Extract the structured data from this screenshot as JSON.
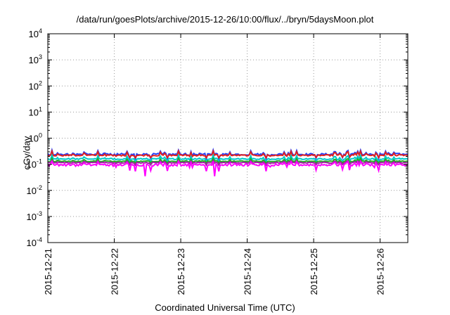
{
  "chart_data": {
    "type": "line",
    "title": "/data/run/goesPlots/archive/2015-12-26/10:00/flux/../bryn/5daysMoon.plot",
    "xlabel": "Coordinated Universal Time (UTC)",
    "ylabel": "cGy/day",
    "yscale": "log",
    "ylim": [
      0.0001,
      10000
    ],
    "y_ticks": [
      {
        "base": "10",
        "exp": "-4"
      },
      {
        "base": "10",
        "exp": "-3"
      },
      {
        "base": "10",
        "exp": "-2"
      },
      {
        "base": "10",
        "exp": "-1"
      },
      {
        "base": "10",
        "exp": "0"
      },
      {
        "base": "10",
        "exp": "1"
      },
      {
        "base": "10",
        "exp": "2"
      },
      {
        "base": "10",
        "exp": "3"
      },
      {
        "base": "10",
        "exp": "4"
      }
    ],
    "x_ticks": [
      "2015-12-21",
      "2015-12-22",
      "2015-12-23",
      "2015-12-24",
      "2015-12-25",
      "2015-12-26"
    ],
    "xlim": [
      "2015-12-21T00:00",
      "2015-12-26T10:00"
    ],
    "grid": true,
    "legend": "none",
    "series": [
      {
        "color": "#1f3fff",
        "values_range": [
          0.12,
          0.35
        ],
        "baseline": 0.24
      },
      {
        "color": "#e02020",
        "values_range": [
          0.15,
          0.32
        ],
        "baseline": 0.22
      },
      {
        "color": "#00c8c8",
        "values_range": [
          0.11,
          0.22
        ],
        "baseline": 0.16
      },
      {
        "color": "#20b020",
        "values_range": [
          0.1,
          0.17
        ],
        "baseline": 0.13
      },
      {
        "color": "#a020a0",
        "values_range": [
          0.08,
          0.14
        ],
        "baseline": 0.115
      },
      {
        "color": "#ff00ff",
        "values_range": [
          0.035,
          0.13
        ],
        "baseline": 0.095
      }
    ]
  }
}
